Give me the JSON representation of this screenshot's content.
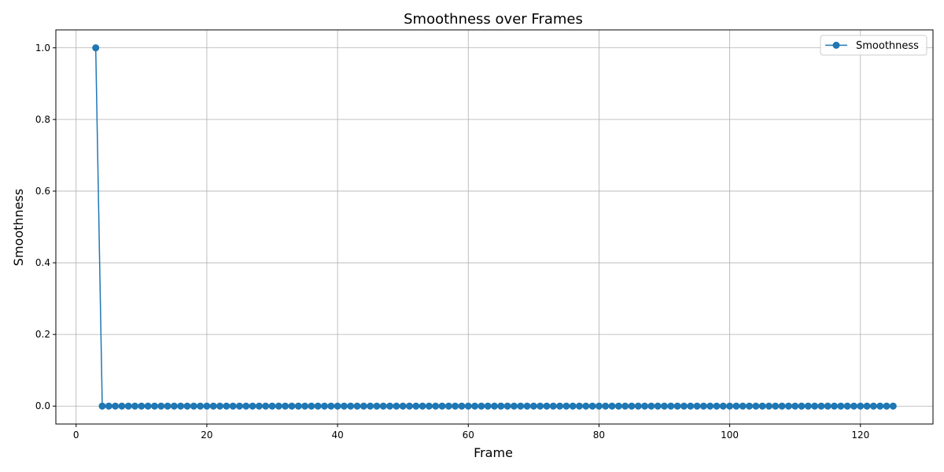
{
  "chart_data": {
    "type": "line",
    "title": "Smoothness over Frames",
    "xlabel": "Frame",
    "ylabel": "Smoothness",
    "xlim": [
      -3.1,
      131.1
    ],
    "ylim": [
      -0.05,
      1.05
    ],
    "x_ticks": [
      0,
      20,
      40,
      60,
      80,
      100,
      120
    ],
    "y_ticks": [
      0.0,
      0.2,
      0.4,
      0.6,
      0.8,
      1.0
    ],
    "x_tick_labels": [
      "0",
      "20",
      "40",
      "60",
      "80",
      "100",
      "120"
    ],
    "y_tick_labels": [
      "0.0",
      "0.2",
      "0.4",
      "0.6",
      "0.8",
      "1.0"
    ],
    "grid": true,
    "legend_position": "top-right",
    "series": [
      {
        "name": "Smoothness",
        "color": "#1f77b4",
        "marker": "circle",
        "x": [
          3,
          4,
          5,
          6,
          7,
          8,
          9,
          10,
          11,
          12,
          13,
          14,
          15,
          16,
          17,
          18,
          19,
          20,
          21,
          22,
          23,
          24,
          25,
          26,
          27,
          28,
          29,
          30,
          31,
          32,
          33,
          34,
          35,
          36,
          37,
          38,
          39,
          40,
          41,
          42,
          43,
          44,
          45,
          46,
          47,
          48,
          49,
          50,
          51,
          52,
          53,
          54,
          55,
          56,
          57,
          58,
          59,
          60,
          61,
          62,
          63,
          64,
          65,
          66,
          67,
          68,
          69,
          70,
          71,
          72,
          73,
          74,
          75,
          76,
          77,
          78,
          79,
          80,
          81,
          82,
          83,
          84,
          85,
          86,
          87,
          88,
          89,
          90,
          91,
          92,
          93,
          94,
          95,
          96,
          97,
          98,
          99,
          100,
          101,
          102,
          103,
          104,
          105,
          106,
          107,
          108,
          109,
          110,
          111,
          112,
          113,
          114,
          115,
          116,
          117,
          118,
          119,
          120,
          121,
          122,
          123,
          124,
          125
        ],
        "y": [
          1.0,
          0,
          0,
          0,
          0,
          0,
          0,
          0,
          0,
          0,
          0,
          0,
          0,
          0,
          0,
          0,
          0,
          0,
          0,
          0,
          0,
          0,
          0,
          0,
          0,
          0,
          0,
          0,
          0,
          0,
          0,
          0,
          0,
          0,
          0,
          0,
          0,
          0,
          0,
          0,
          0,
          0,
          0,
          0,
          0,
          0,
          0,
          0,
          0,
          0,
          0,
          0,
          0,
          0,
          0,
          0,
          0,
          0,
          0,
          0,
          0,
          0,
          0,
          0,
          0,
          0,
          0,
          0,
          0,
          0,
          0,
          0,
          0,
          0,
          0,
          0,
          0,
          0,
          0,
          0,
          0,
          0,
          0,
          0,
          0,
          0,
          0,
          0,
          0,
          0,
          0,
          0,
          0,
          0,
          0,
          0,
          0,
          0,
          0,
          0,
          0,
          0,
          0,
          0,
          0,
          0,
          0,
          0,
          0,
          0,
          0,
          0,
          0,
          0,
          0,
          0,
          0,
          0,
          0,
          0,
          0,
          0,
          0
        ]
      }
    ]
  }
}
